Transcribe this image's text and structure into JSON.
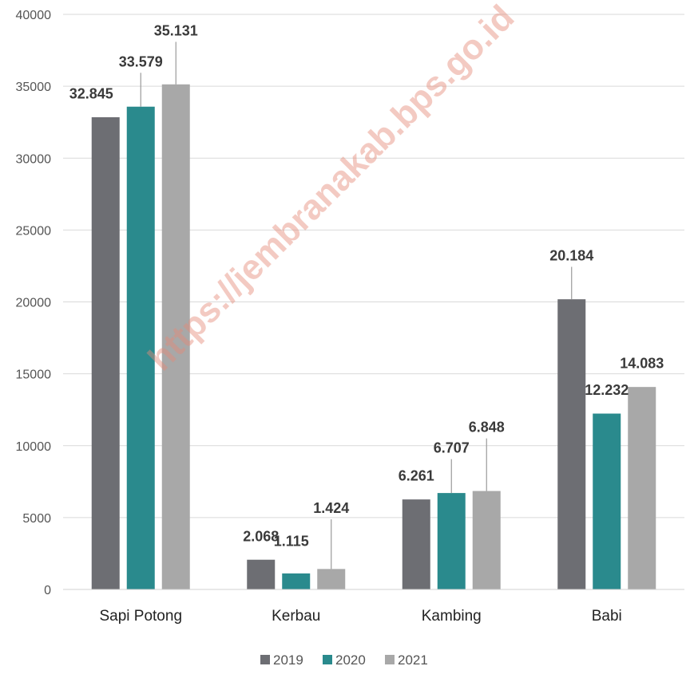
{
  "chart_data": {
    "type": "bar",
    "categories": [
      "Sapi Potong",
      "Kerbau",
      "Kambing",
      "Babi"
    ],
    "series": [
      {
        "name": "2019",
        "values": [
          32845,
          2068,
          6261,
          20184
        ],
        "labels": [
          "32.845",
          "2.068",
          "6.261",
          "20.184"
        ],
        "color": "#6d6e73"
      },
      {
        "name": "2020",
        "values": [
          33579,
          1115,
          6707,
          12232
        ],
        "labels": [
          "33.579",
          "1.115",
          "6.707",
          "12.232"
        ],
        "color": "#2a8a8d"
      },
      {
        "name": "2021",
        "values": [
          35131,
          1424,
          6848,
          14083
        ],
        "labels": [
          "35.131",
          "1.424",
          "6.848",
          "14.083"
        ],
        "color": "#a8a8a8"
      }
    ],
    "ylim": [
      0,
      40000
    ],
    "yticks": [
      "0",
      "5000",
      "10000",
      "15000",
      "20000",
      "25000",
      "30000",
      "35000",
      "40000"
    ],
    "grid": true,
    "legend_position": "bottom",
    "gridline_color": "#d9d9d9",
    "watermark": "https://jembranakab.bps.go.id"
  }
}
